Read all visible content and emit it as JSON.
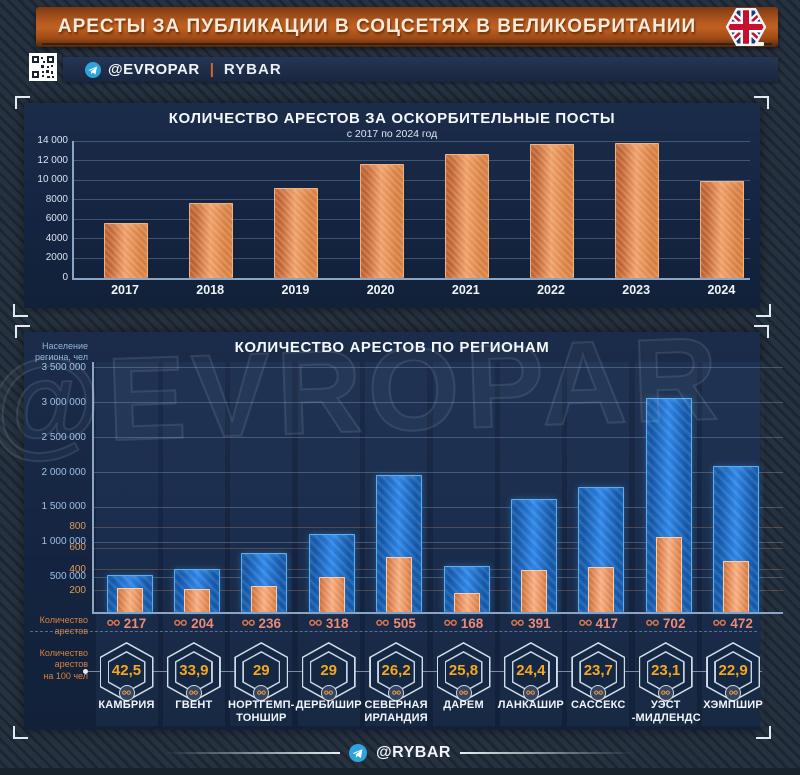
{
  "header": {
    "title": "АРЕСТЫ ЗА ПУБЛИКАЦИИ В СОЦСЕТЯХ В ВЕЛИКОБРИТАНИИ",
    "flag_icon": "uk-flag-hexagon"
  },
  "source_bar": {
    "qr_icon": "qr-code",
    "telegram_icon": "telegram",
    "channel": "@EVROPAR",
    "separator": "|",
    "brand": "RYBAR"
  },
  "watermark": "@EVROPAR",
  "footer": {
    "telegram_icon": "telegram",
    "handle": "@RYBAR"
  },
  "colors": {
    "accent_orange": "#c05a20",
    "bar_orange": "#ef9d6d",
    "bar_blue": "#1e6fd2",
    "count_salmon": "#e98b79",
    "hex_number_orange": "#f6a71e"
  },
  "chart_data": [
    {
      "type": "bar",
      "title": "КОЛИЧЕСТВО АРЕСТОВ ЗА ОСКОРБИТЕЛЬНЫЕ ПОСТЫ",
      "subtitle": "с 2017 по 2024 год",
      "categories": [
        "2017",
        "2018",
        "2019",
        "2020",
        "2021",
        "2022",
        "2023",
        "2024"
      ],
      "values": [
        5500,
        7550,
        9100,
        11500,
        12550,
        13550,
        13650,
        9800
      ],
      "ylim": [
        0,
        14000
      ],
      "yticks": [
        0,
        2000,
        4000,
        6000,
        8000,
        10000,
        12000,
        14000
      ],
      "ytick_labels": [
        "0",
        "2000",
        "4000",
        "6000",
        "8000",
        "10 000",
        "12 000",
        "14 000"
      ],
      "grid": true,
      "legend": "none"
    },
    {
      "type": "bar",
      "title": "КОЛИЧЕСТВО АРЕСТОВ ПО РЕГИОНАМ",
      "left_axis_label_lines": [
        "Население",
        "региона, чел"
      ],
      "left_ylim": [
        0,
        3500000
      ],
      "left_ticks": [
        500000,
        1000000,
        1500000,
        2000000,
        2500000,
        3000000,
        3500000
      ],
      "left_tick_labels": [
        "500 000",
        "1 000 000",
        "1 500 000",
        "2 000 000",
        "2 500 000",
        "3 000 000",
        "3 500 000"
      ],
      "right_ticks": [
        200,
        400,
        600,
        800
      ],
      "categories": [
        "КАМБРИЯ",
        "ГВЕНТ",
        "НОРТГЕМПТОНШИР",
        "ДЕРБИШИР",
        "СЕВЕРНАЯ ИРЛАНДИЯ",
        "ДАРЕМ",
        "ЛАНКАШИР",
        "САССЕКС",
        "УЭСТ-МИДЛЕНДС",
        "ХЭМПШИР"
      ],
      "name_lines": [
        [
          "КАМБРИЯ"
        ],
        [
          "ГВЕНТ"
        ],
        [
          "НОРТГЕМП-",
          "ТОНШИР"
        ],
        [
          "ДЕРБИШИР"
        ],
        [
          "СЕВЕРНАЯ",
          "ИРЛАНДИЯ"
        ],
        [
          "ДАРЕМ"
        ],
        [
          "ЛАНКАШИР"
        ],
        [
          "САССЕКС"
        ],
        [
          "УЭСТ",
          "-МИДЛЕНДС"
        ],
        [
          "ХЭМПШИР"
        ]
      ],
      "series": [
        {
          "name": "Население региона, чел",
          "axis": "left",
          "values": [
            520000,
            600000,
            830000,
            1100000,
            1950000,
            650000,
            1610000,
            1780000,
            3050000,
            2080000
          ]
        },
        {
          "name": "Количество арестов",
          "axis": "right",
          "values": [
            217,
            204,
            236,
            318,
            505,
            168,
            391,
            417,
            702,
            472
          ]
        }
      ],
      "arrests_label_lines": [
        "Количество",
        "арестов"
      ],
      "per100_label_lines": [
        "Количество",
        "арестов",
        "на 100 чел"
      ],
      "per100_values": [
        "42,5",
        "33,9",
        "29",
        "29",
        "26,2",
        "25,8",
        "24,4",
        "23,7",
        "23,1",
        "22,9"
      ],
      "grid": true
    }
  ]
}
